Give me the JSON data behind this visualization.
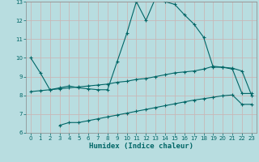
{
  "xlabel": "Humidex (Indice chaleur)",
  "bg_color": "#b8dde0",
  "grid_color": "#c8b8b8",
  "line_color": "#006666",
  "xlim": [
    -0.5,
    23.5
  ],
  "ylim": [
    6,
    13
  ],
  "yticks": [
    6,
    7,
    8,
    9,
    10,
    11,
    12,
    13
  ],
  "xticks": [
    0,
    1,
    2,
    3,
    4,
    5,
    6,
    7,
    8,
    9,
    10,
    11,
    12,
    13,
    14,
    15,
    16,
    17,
    18,
    19,
    20,
    21,
    22,
    23
  ],
  "line1_x": [
    0,
    1,
    2,
    3,
    4,
    5,
    6,
    7,
    8,
    9,
    10,
    11,
    12,
    13,
    14,
    15,
    16,
    17,
    18,
    19,
    20,
    21,
    22,
    23
  ],
  "line1_y": [
    10.0,
    9.2,
    8.3,
    8.4,
    8.5,
    8.4,
    8.35,
    8.3,
    8.3,
    9.8,
    11.3,
    13.0,
    12.0,
    13.2,
    13.0,
    12.85,
    12.3,
    11.8,
    11.1,
    9.5,
    9.5,
    9.4,
    8.1,
    8.1
  ],
  "line2_x": [
    0,
    1,
    2,
    3,
    4,
    5,
    6,
    7,
    8,
    9,
    10,
    11,
    12,
    13,
    14,
    15,
    16,
    17,
    18,
    19,
    20,
    21,
    22,
    23
  ],
  "line2_y": [
    8.2,
    8.25,
    8.3,
    8.35,
    8.4,
    8.45,
    8.5,
    8.55,
    8.6,
    8.7,
    8.75,
    8.85,
    8.9,
    9.0,
    9.1,
    9.2,
    9.25,
    9.3,
    9.4,
    9.55,
    9.5,
    9.45,
    9.3,
    8.0
  ],
  "line3_x": [
    3,
    4,
    5,
    6,
    7,
    8,
    9,
    10,
    11,
    12,
    13,
    14,
    15,
    16,
    17,
    18,
    19,
    20,
    21,
    22,
    23
  ],
  "line3_y": [
    6.4,
    6.55,
    6.55,
    6.65,
    6.75,
    6.85,
    6.95,
    7.05,
    7.15,
    7.25,
    7.35,
    7.45,
    7.55,
    7.65,
    7.75,
    7.82,
    7.9,
    7.98,
    8.02,
    7.52,
    7.52
  ]
}
